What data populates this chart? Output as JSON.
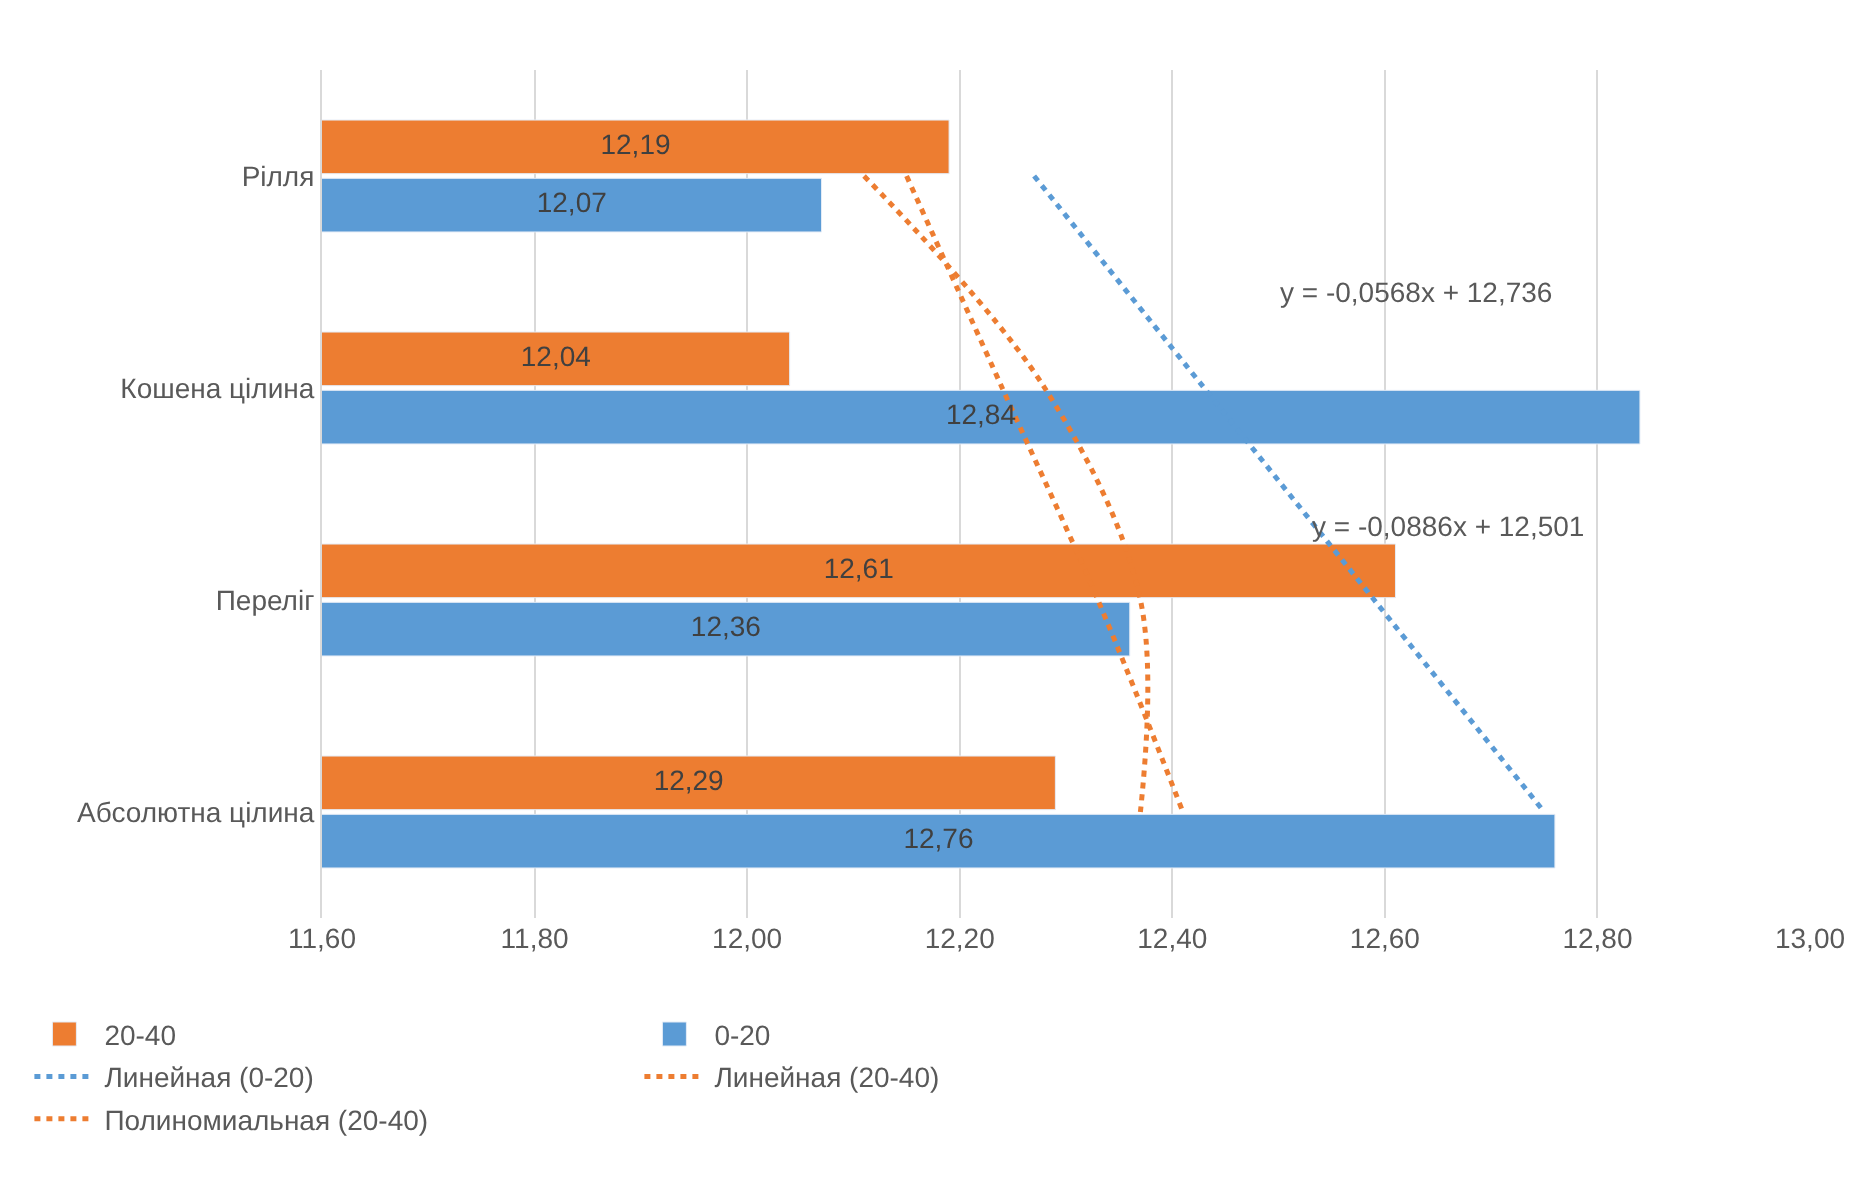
{
  "chart_data": {
    "type": "bar",
    "orientation": "horizontal",
    "categories": [
      "Рілля",
      "Кошена цілина",
      "Переліг",
      "Абсолютна цілина"
    ],
    "series": [
      {
        "name": "20-40",
        "color": "#ed7d31",
        "values": [
          12.19,
          12.04,
          12.61,
          12.29
        ],
        "value_labels": [
          "12,19",
          "12,04",
          "12,61",
          "12,29"
        ]
      },
      {
        "name": "0-20",
        "color": "#5b9bd5",
        "values": [
          12.07,
          12.84,
          12.36,
          12.76
        ],
        "value_labels": [
          "12,07",
          "12,84",
          "12,36",
          "12,76"
        ]
      },
      {
        "name": "Линейная (0-20)",
        "type": "line",
        "line_style": "dotted",
        "color": "#5b9bd5",
        "values": [
          12.27,
          12.43,
          12.59,
          12.75
        ]
      },
      {
        "name": "Линейная (20-40)",
        "type": "line",
        "line_style": "dotted",
        "color": "#ed7d31",
        "values": [
          12.15,
          12.24,
          12.33,
          12.41
        ]
      },
      {
        "name": "Полиномиальная (20-40)",
        "type": "line",
        "line_style": "dotted",
        "color": "#ed7d31",
        "values": [
          12.11,
          12.28,
          12.37,
          12.37
        ]
      }
    ],
    "xlim": [
      11.6,
      13.0
    ],
    "xticks": [
      {
        "value": 11.6,
        "label": "11,60"
      },
      {
        "value": 11.8,
        "label": "11,80"
      },
      {
        "value": 12.0,
        "label": "12,00"
      },
      {
        "value": 12.2,
        "label": "12,20"
      },
      {
        "value": 12.4,
        "label": "12,40"
      },
      {
        "value": 12.6,
        "label": "12,60"
      },
      {
        "value": 12.8,
        "label": "12,80"
      },
      {
        "value": 13.0,
        "label": "13,00"
      }
    ],
    "grid": "x",
    "legend": "bottom",
    "annotations": [
      "y = -0,0568x + 12,736",
      "y = -0,0886x + 12,501"
    ]
  }
}
